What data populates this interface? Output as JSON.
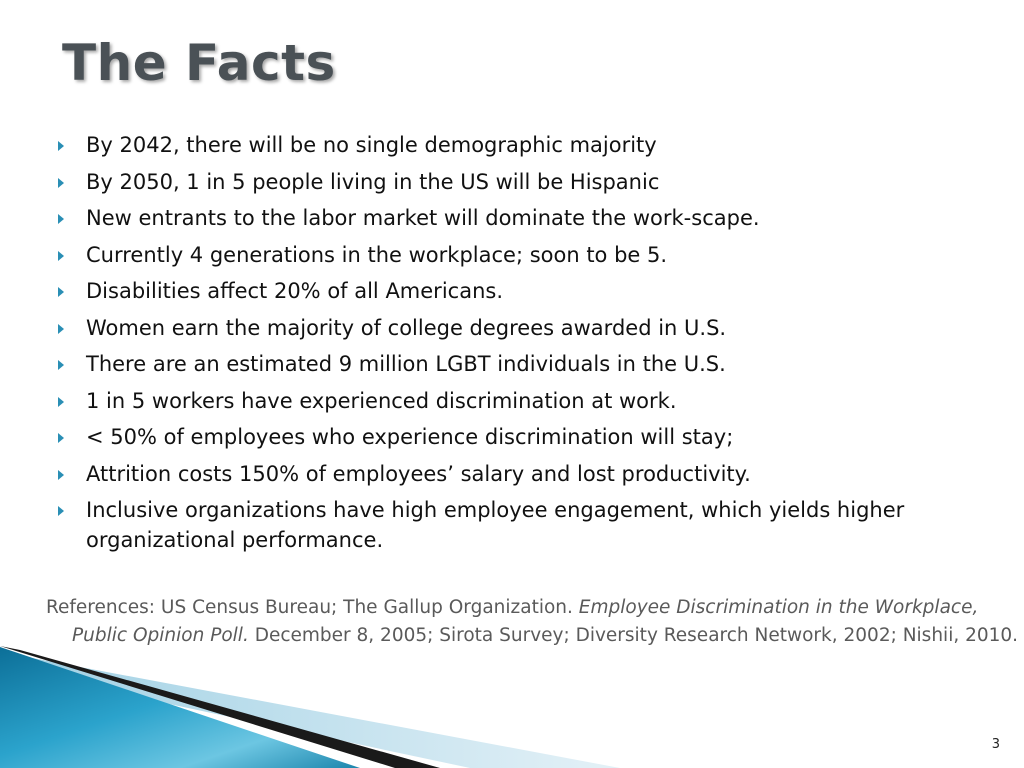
{
  "slide": {
    "title": "The Facts",
    "bullets": [
      "By 2042, there will be no single demographic majority",
      "By 2050, 1 in 5 people living in the US will be Hispanic",
      "New entrants to the labor market will dominate the work-scape.",
      "Currently 4 generations in the workplace; soon to be 5.",
      "Disabilities affect 20% of all Americans.",
      "Women earn the majority of college degrees awarded in U.S.",
      "There are an estimated 9 million LGBT individuals in the U.S.",
      "1 in 5 workers have experienced discrimination at work.",
      "< 50% of employees who experience discrimination will stay;",
      "Attrition costs 150% of employees’ salary and lost productivity.",
      "Inclusive organizations have high employee engagement, which yields higher organizational performance."
    ],
    "references": {
      "prefix": "References: US Census Bureau; The Gallup Organization. ",
      "italic": "Employee Discrimination in the Workplace, Public Opinion Poll.",
      "suffix": " December 8, 2005; Sirota Survey; Diversity Research Network, 2002; Nishii, 2010."
    },
    "page_number": "3"
  },
  "colors": {
    "title": "#4a5156",
    "bullet_marker": "#2a8fb5",
    "text": "#111111",
    "references": "#5a5a5a",
    "swoosh_blue": "#1f89b0",
    "swoosh_dark": "#1a1a1a"
  },
  "icons": {
    "bullet": "triangle-right-icon"
  }
}
